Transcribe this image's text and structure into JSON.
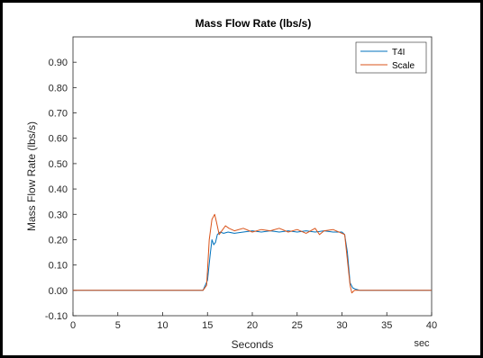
{
  "chart_data": {
    "type": "line",
    "title": "Mass Flow Rate (lbs/s)",
    "xlabel": "Seconds",
    "ylabel": "Mass Flow Rate (lbs/s)",
    "x_unit_label": "sec",
    "xlim": [
      0,
      40
    ],
    "ylim": [
      -0.1,
      1.0
    ],
    "grid": false,
    "legend_position": "top-right",
    "x_ticks": [
      0,
      5,
      10,
      15,
      20,
      25,
      30,
      35,
      40
    ],
    "x_tick_labels": [
      "0",
      "5",
      "10",
      "15",
      "20",
      "25",
      "30",
      "35",
      "40"
    ],
    "y_ticks": [
      -0.1,
      0.0,
      0.1,
      0.2,
      0.3,
      0.4,
      0.5,
      0.6,
      0.7,
      0.8,
      0.9
    ],
    "y_tick_labels": [
      "-0.10",
      "0.00",
      "0.10",
      "0.20",
      "0.30",
      "0.40",
      "0.50",
      "0.60",
      "0.70",
      "0.80",
      "0.90"
    ],
    "series": [
      {
        "name": "T4I",
        "color": "#0072BD",
        "x": [
          0,
          14.5,
          15.0,
          15.3,
          15.5,
          15.7,
          15.9,
          16.1,
          16.4,
          16.8,
          17.3,
          18,
          19,
          20,
          21,
          22,
          23,
          24,
          25,
          26,
          27,
          28,
          29,
          30.0,
          30.3,
          30.6,
          30.9,
          31.2,
          31.5,
          32,
          40
        ],
        "y": [
          0,
          0,
          0.04,
          0.14,
          0.2,
          0.18,
          0.19,
          0.22,
          0.23,
          0.225,
          0.23,
          0.225,
          0.23,
          0.235,
          0.23,
          0.235,
          0.23,
          0.235,
          0.23,
          0.235,
          0.23,
          0.235,
          0.23,
          0.23,
          0.22,
          0.15,
          0.03,
          0.01,
          0.005,
          0.0,
          0.0
        ]
      },
      {
        "name": "Scale",
        "color": "#D95319",
        "x": [
          0,
          14.5,
          14.9,
          15.2,
          15.5,
          15.8,
          16.0,
          16.3,
          16.6,
          17.0,
          17.4,
          18,
          19,
          20,
          21,
          22,
          23,
          24,
          25,
          26,
          27,
          27.5,
          28,
          29,
          30.0,
          30.3,
          30.6,
          30.9,
          31.1,
          31.4,
          32,
          40
        ],
        "y": [
          0,
          0,
          0.02,
          0.2,
          0.28,
          0.3,
          0.27,
          0.22,
          0.235,
          0.255,
          0.245,
          0.235,
          0.245,
          0.23,
          0.24,
          0.235,
          0.245,
          0.23,
          0.24,
          0.225,
          0.245,
          0.22,
          0.235,
          0.24,
          0.225,
          0.22,
          0.12,
          0.02,
          -0.01,
          0.0,
          0.0,
          0.0
        ]
      }
    ]
  }
}
